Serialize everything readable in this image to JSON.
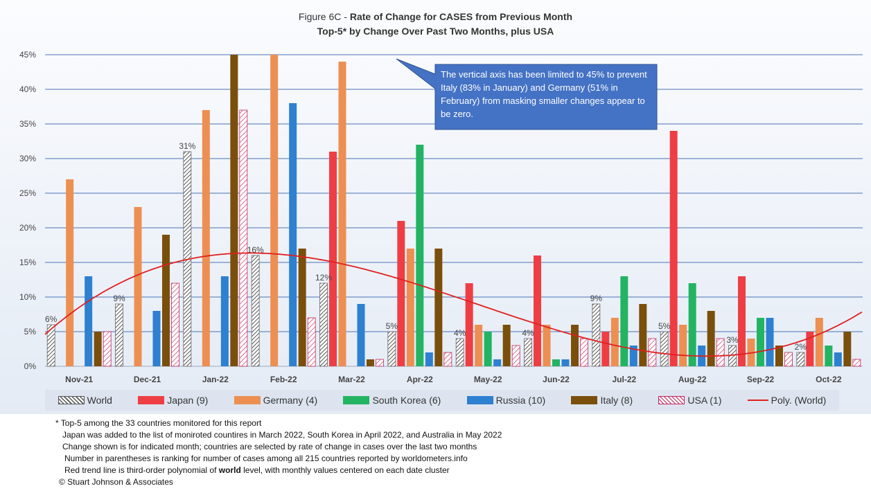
{
  "chart_data": {
    "type": "bar",
    "title_prefix": "Figure 6C - ",
    "title_bold": "Rate of Change for CASES from Previous Month",
    "subtitle": "Top-5* by Change Over Past Two Months, plus USA",
    "categories": [
      "Nov-21",
      "Dec-21",
      "Jan-22",
      "Feb-22",
      "Mar-22",
      "Apr-22",
      "May-22",
      "Jun-22",
      "Jul-22",
      "Aug-22",
      "Sep-22",
      "Oct-22"
    ],
    "y_ticks": [
      "0%",
      "5%",
      "10%",
      "15%",
      "20%",
      "25%",
      "30%",
      "35%",
      "40%",
      "45%"
    ],
    "ylim": [
      0,
      45
    ],
    "series": [
      {
        "name": "World",
        "color": "#ffffff",
        "pattern": "diag-black",
        "values": [
          6,
          9,
          31,
          16,
          12,
          5,
          4,
          4,
          9,
          5,
          3,
          2
        ],
        "labels": [
          "6%",
          "9%",
          "31%",
          "16%",
          "12%",
          "5%",
          "4%",
          "4%",
          "9%",
          "5%",
          "3%",
          "2%"
        ]
      },
      {
        "name": "Japan (9)",
        "color": "#ee3e44",
        "values": [
          0,
          0,
          0,
          0,
          31,
          21,
          12,
          16,
          5,
          34,
          13,
          5
        ]
      },
      {
        "name": "Germany (4)",
        "color": "#ed8f52",
        "values": [
          27,
          23,
          37,
          45,
          44,
          17,
          6,
          6,
          7,
          6,
          4,
          7
        ]
      },
      {
        "name": "South Korea (6)",
        "color": "#22b463",
        "values": [
          0,
          0,
          0,
          0,
          0,
          32,
          5,
          1,
          13,
          12,
          7,
          3
        ]
      },
      {
        "name": "Russia (10)",
        "color": "#2e80d0",
        "values": [
          13,
          8,
          13,
          38,
          9,
          2,
          1,
          1,
          3,
          3,
          7,
          2
        ]
      },
      {
        "name": "Italy (8)",
        "color": "#7a4f0c",
        "values": [
          5,
          19,
          45,
          17,
          1,
          17,
          6,
          6,
          9,
          8,
          3,
          5
        ]
      },
      {
        "name": "USA (1)",
        "color": "#ffffff",
        "pattern": "diag-pink",
        "values": [
          5,
          12,
          37,
          7,
          1,
          2,
          3,
          4,
          4,
          4,
          2,
          1
        ]
      }
    ],
    "trendline": {
      "name": "Poly. (World)",
      "color": "#e02020"
    },
    "annotation": "The vertical axis has been limited to 45% to prevent Italy (83% in January) and Germany (51% in February) from masking smaller changes appear to be zero.",
    "grid": true,
    "legend_position": "bottom"
  },
  "footnotes": [
    "* Top-5 among the 33 countries monitored for this report",
    "Japan was added to the list of moniroted countires in March 2022, South Korea in April 2022, and Australia in May 2022",
    "Change shown is for indicated month; countries are selected by rate of change in cases over the last two months",
    "Number in parentheses is ranking for number of cases among all 215 countries reported by worldometers.info"
  ],
  "footnote_trend": {
    "before": "Red trend line is third-order polynomial of ",
    "bold": "world",
    "after": " level, with monthly values centered on each date cluster"
  },
  "copyright": "© Stuart Johnson & Associates"
}
